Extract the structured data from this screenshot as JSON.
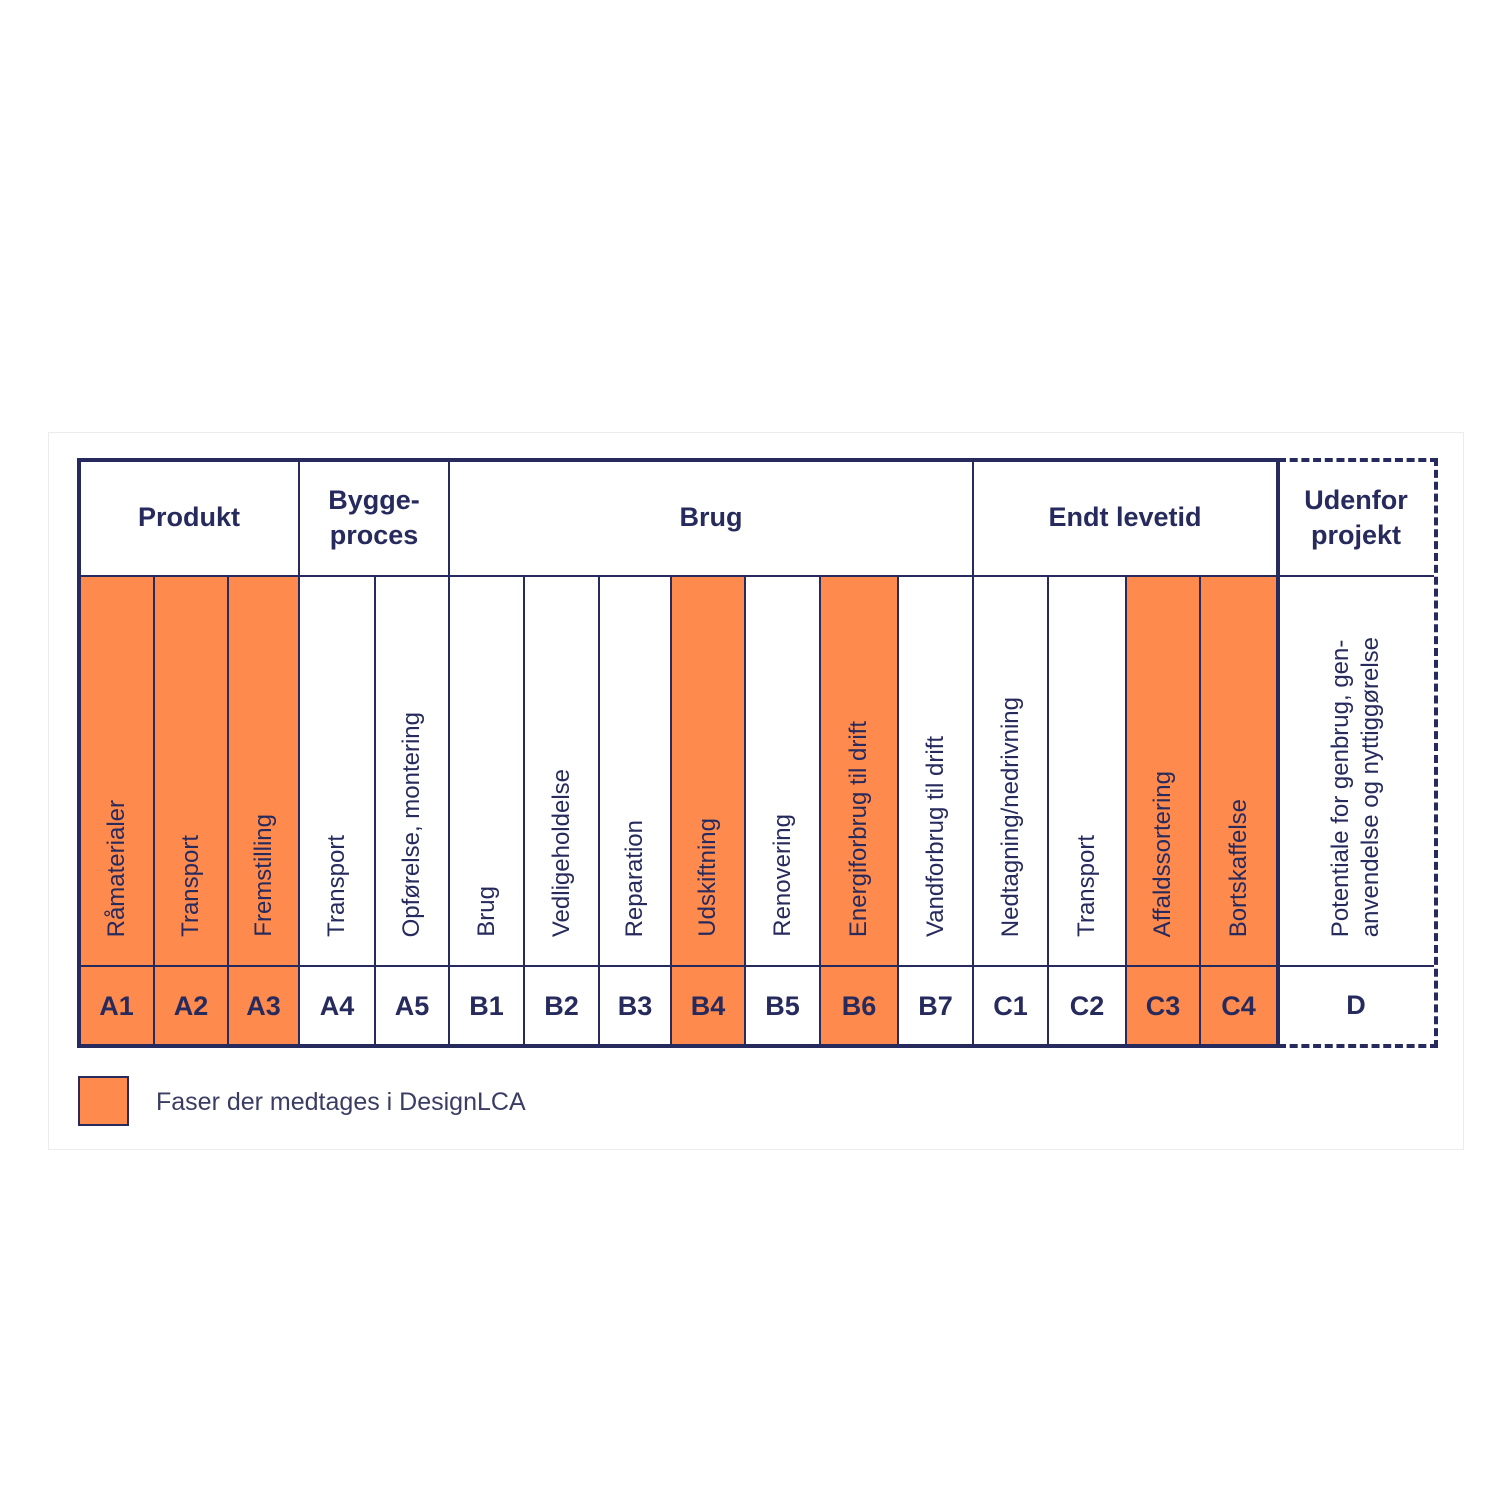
{
  "colors": {
    "included": "#ff8a4d",
    "navy": "#262a5c"
  },
  "groups": [
    {
      "label": "Produkt",
      "start": 0,
      "end": 3
    },
    {
      "label": "Bygge-\nproces",
      "start": 3,
      "end": 5
    },
    {
      "label": "Brug",
      "start": 5,
      "end": 12
    },
    {
      "label": "Endt levetid",
      "start": 12,
      "end": 16
    }
  ],
  "phases": [
    {
      "code": "A1",
      "label": "Råmaterialer",
      "included": true
    },
    {
      "code": "A2",
      "label": "Transport",
      "included": true
    },
    {
      "code": "A3",
      "label": "Fremstilling",
      "included": true
    },
    {
      "code": "A4",
      "label": "Transport",
      "included": false
    },
    {
      "code": "A5",
      "label": "Opførelse, montering",
      "included": false
    },
    {
      "code": "B1",
      "label": "Brug",
      "included": false
    },
    {
      "code": "B2",
      "label": "Vedligeholdelse",
      "included": false
    },
    {
      "code": "B3",
      "label": "Reparation",
      "included": false
    },
    {
      "code": "B4",
      "label": "Udskiftning",
      "included": true
    },
    {
      "code": "B5",
      "label": "Renovering",
      "included": false
    },
    {
      "code": "B6",
      "label": "Energiforbrug til drift",
      "included": true
    },
    {
      "code": "B7",
      "label": "Vandforbrug til drift",
      "included": false
    },
    {
      "code": "C1",
      "label": "Nedtagning/nedrivning",
      "included": false
    },
    {
      "code": "C2",
      "label": "Transport",
      "included": false
    },
    {
      "code": "C3",
      "label": "Affaldssortering",
      "included": true
    },
    {
      "code": "C4",
      "label": "Bortskaffelse",
      "included": true
    }
  ],
  "outside": {
    "header": "Udenfor\nprojekt",
    "label": "Potentiale for genbrug, gen-\nanvendelse og nyttiggørelse",
    "code": "D"
  },
  "legend": {
    "label": "Faser der medtages i DesignLCA"
  }
}
